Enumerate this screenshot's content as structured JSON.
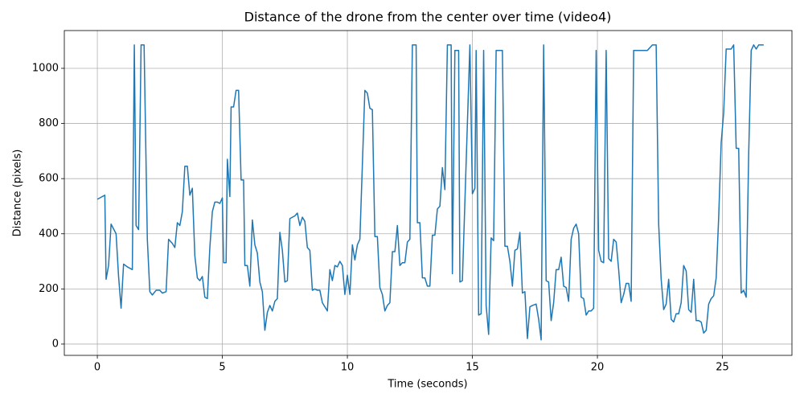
{
  "chart_data": {
    "type": "line",
    "title": "Distance of the drone from the center over time (video4)",
    "xlabel": "Time (seconds)",
    "ylabel": "Distance (pixels)",
    "color": "#1f77b4",
    "grid": true,
    "xlim": [
      -1.32,
      27.78
    ],
    "ylim": [
      -41,
      1137
    ],
    "xticks": [
      0,
      5,
      10,
      15,
      20,
      25
    ],
    "yticks": [
      0,
      200,
      400,
      600,
      800,
      1000
    ],
    "x": [
      0,
      0.3,
      0.35,
      0.45,
      0.55,
      0.75,
      0.85,
      0.95,
      1.05,
      1.2,
      1.4,
      1.48,
      1.55,
      1.65,
      1.75,
      1.87,
      2.0,
      2.1,
      2.2,
      2.35,
      2.5,
      2.6,
      2.75,
      2.85,
      3.0,
      3.1,
      3.2,
      3.3,
      3.4,
      3.5,
      3.6,
      3.7,
      3.8,
      3.9,
      4.0,
      4.1,
      4.2,
      4.3,
      4.4,
      4.5,
      4.6,
      4.7,
      4.8,
      4.9,
      5.0,
      5.05,
      5.15,
      5.2,
      5.3,
      5.35,
      5.45,
      5.55,
      5.65,
      5.75,
      5.85,
      5.9,
      6.0,
      6.1,
      6.2,
      6.3,
      6.4,
      6.5,
      6.6,
      6.7,
      6.8,
      6.9,
      7.0,
      7.1,
      7.2,
      7.3,
      7.4,
      7.5,
      7.6,
      7.7,
      7.9,
      8.0,
      8.1,
      8.2,
      8.3,
      8.4,
      8.5,
      8.6,
      8.7,
      8.8,
      8.9,
      9.0,
      9.1,
      9.2,
      9.3,
      9.4,
      9.5,
      9.6,
      9.7,
      9.8,
      9.9,
      10.0,
      10.1,
      10.2,
      10.3,
      10.4,
      10.5,
      10.7,
      10.8,
      10.9,
      11.0,
      11.1,
      11.2,
      11.3,
      11.4,
      11.5,
      11.6,
      11.7,
      11.8,
      11.9,
      12.0,
      12.1,
      12.2,
      12.3,
      12.4,
      12.5,
      12.6,
      12.75,
      12.8,
      12.9,
      13.0,
      13.1,
      13.2,
      13.3,
      13.4,
      13.5,
      13.6,
      13.7,
      13.8,
      13.9,
      14.0,
      14.15,
      14.2,
      14.3,
      14.45,
      14.5,
      14.6,
      14.9,
      15.0,
      15.1,
      15.15,
      15.25,
      15.35,
      15.45,
      15.55,
      15.65,
      15.75,
      15.85,
      15.95,
      16.2,
      16.3,
      16.4,
      16.5,
      16.6,
      16.7,
      16.8,
      16.9,
      17.0,
      17.1,
      17.2,
      17.3,
      17.4,
      17.55,
      17.65,
      17.75,
      17.85,
      17.95,
      18.05,
      18.15,
      18.25,
      18.35,
      18.45,
      18.55,
      18.65,
      18.75,
      18.85,
      18.95,
      19.05,
      19.15,
      19.25,
      19.35,
      19.45,
      19.55,
      19.65,
      19.75,
      19.85,
      19.95,
      20.05,
      20.15,
      20.25,
      20.35,
      20.45,
      20.55,
      20.65,
      20.75,
      20.85,
      20.95,
      21.05,
      21.15,
      21.25,
      21.35,
      21.45,
      21.6,
      22.0,
      22.2,
      22.35,
      22.45,
      22.55,
      22.65,
      22.75,
      22.85,
      22.95,
      23.05,
      23.15,
      23.25,
      23.35,
      23.45,
      23.55,
      23.65,
      23.75,
      23.85,
      23.95,
      24.05,
      24.15,
      24.25,
      24.35,
      24.45,
      24.55,
      24.65,
      24.75,
      24.85,
      24.95,
      25.05,
      25.15,
      25.35,
      25.45,
      25.55,
      25.65,
      25.75,
      25.85,
      25.95,
      26.05,
      26.15,
      26.25,
      26.35,
      26.45,
      26.65
    ],
    "values": [
      525,
      540,
      235,
      285,
      435,
      400,
      245,
      130,
      290,
      280,
      270,
      1085,
      430,
      415,
      1085,
      1085,
      380,
      190,
      178,
      195,
      195,
      185,
      190,
      380,
      365,
      350,
      440,
      430,
      480,
      645,
      645,
      540,
      565,
      320,
      240,
      230,
      245,
      170,
      165,
      350,
      480,
      515,
      515,
      510,
      530,
      295,
      295,
      670,
      535,
      860,
      860,
      920,
      920,
      595,
      595,
      285,
      285,
      210,
      450,
      360,
      330,
      225,
      190,
      50,
      115,
      140,
      120,
      155,
      165,
      405,
      340,
      225,
      230,
      455,
      465,
      475,
      430,
      460,
      445,
      350,
      340,
      195,
      200,
      195,
      195,
      150,
      135,
      120,
      270,
      230,
      285,
      280,
      300,
      285,
      180,
      250,
      180,
      360,
      305,
      360,
      380,
      920,
      910,
      855,
      850,
      390,
      390,
      205,
      180,
      120,
      140,
      150,
      335,
      335,
      430,
      285,
      295,
      295,
      370,
      380,
      1085,
      1085,
      440,
      440,
      240,
      240,
      210,
      210,
      395,
      395,
      490,
      500,
      640,
      560,
      1085,
      1085,
      255,
      1065,
      1065,
      225,
      230,
      1085,
      545,
      565,
      1065,
      105,
      110,
      1065,
      140,
      35,
      385,
      375,
      1065,
      1065,
      355,
      355,
      300,
      210,
      340,
      345,
      405,
      185,
      190,
      20,
      135,
      140,
      145,
      90,
      15,
      1085,
      230,
      225,
      85,
      150,
      270,
      270,
      315,
      210,
      205,
      155,
      380,
      420,
      435,
      400,
      170,
      165,
      105,
      120,
      120,
      130,
      1065,
      340,
      300,
      295,
      1065,
      310,
      300,
      380,
      370,
      270,
      150,
      180,
      220,
      220,
      155,
      1065,
      1065,
      1065,
      1085,
      1085,
      435,
      235,
      125,
      145,
      235,
      90,
      80,
      110,
      110,
      150,
      285,
      265,
      125,
      115,
      235,
      85,
      85,
      80,
      40,
      50,
      145,
      165,
      175,
      240,
      460,
      730,
      840,
      1070,
      1070,
      1085,
      710,
      710,
      185,
      195,
      170,
      690,
      1065,
      1085,
      1070,
      1085,
      1085
    ]
  }
}
